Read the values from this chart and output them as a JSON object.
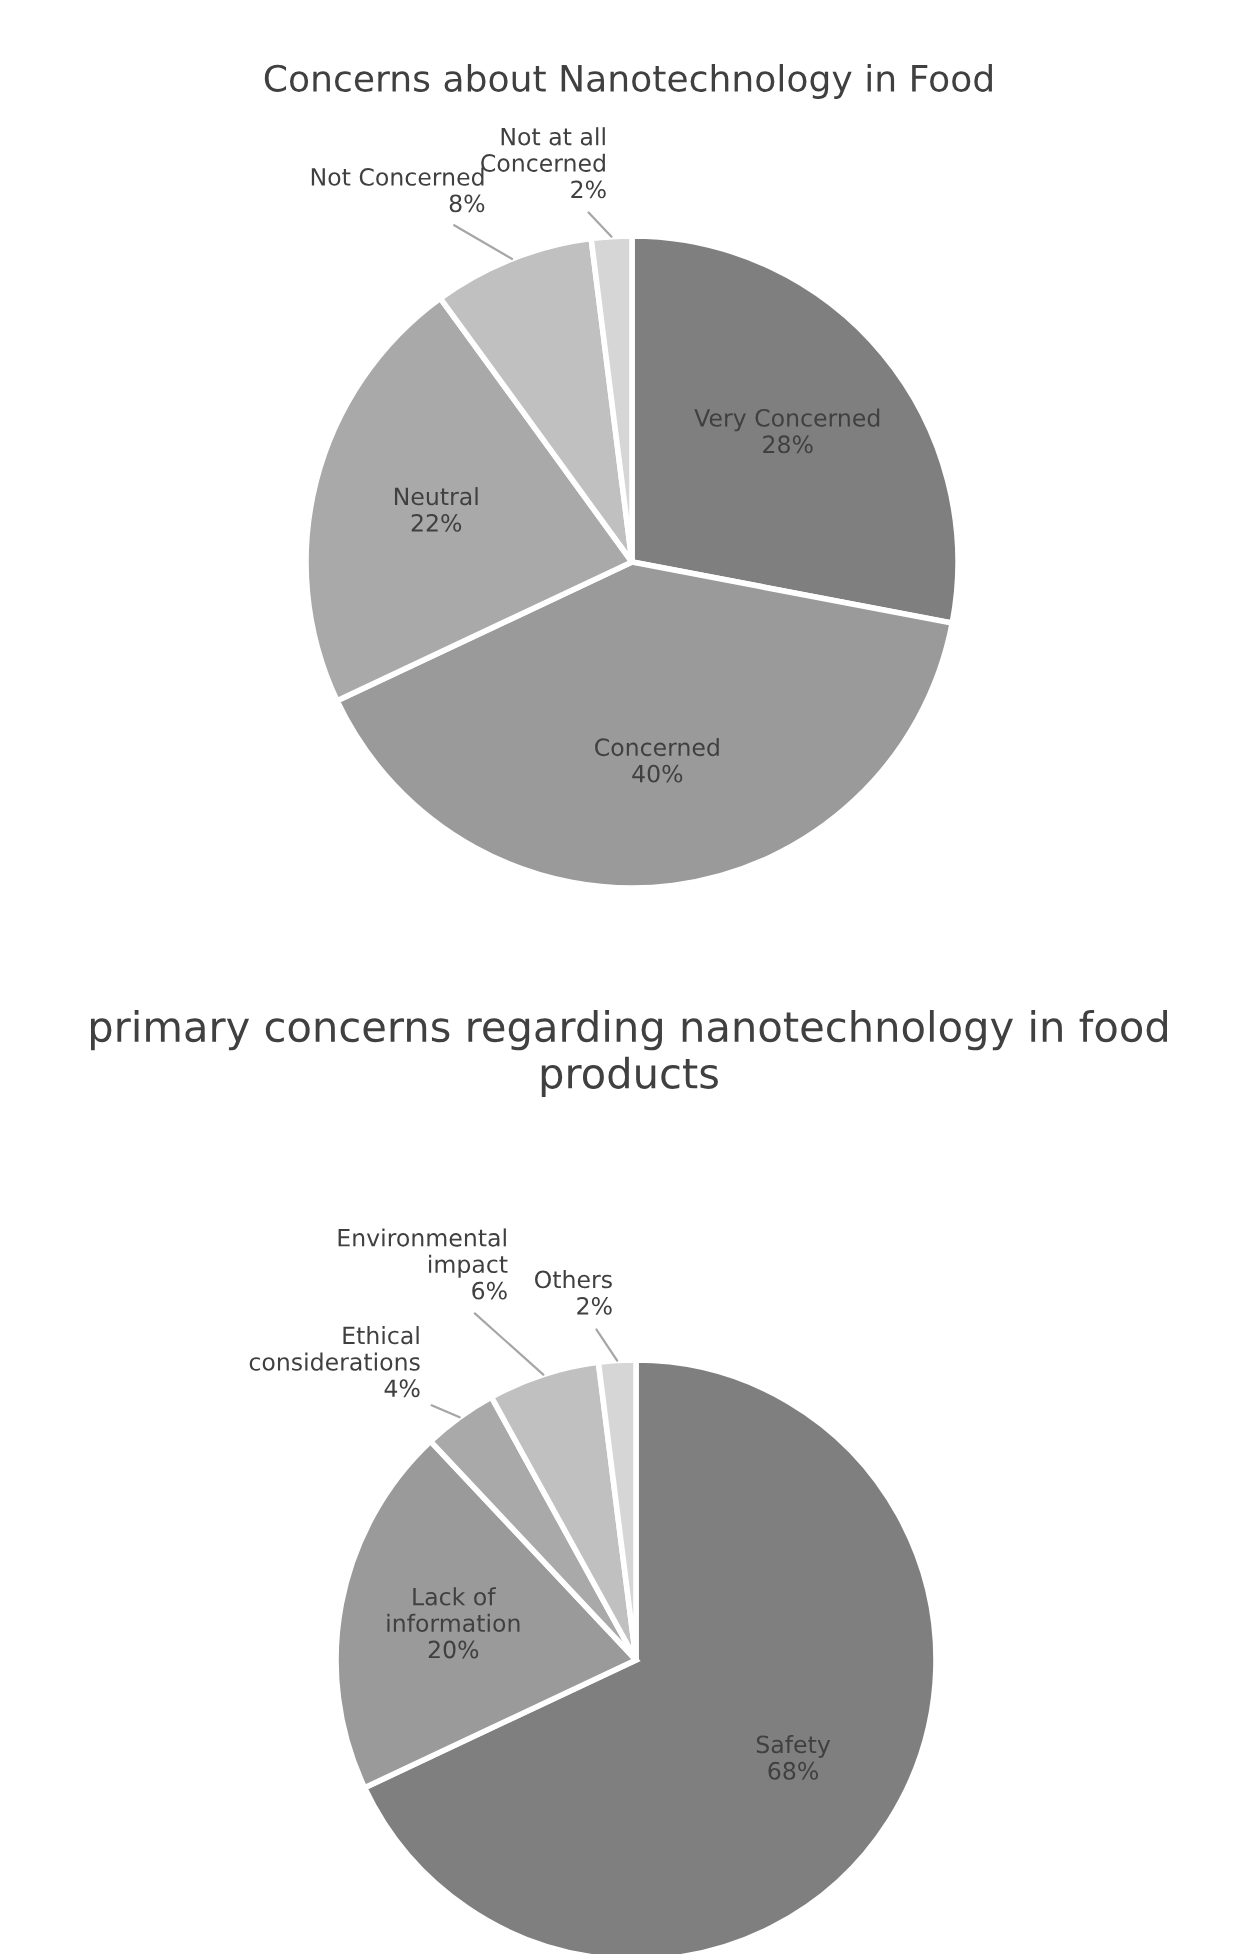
{
  "chart_data": [
    {
      "type": "pie",
      "title": "Concerns about Nanotechnology in Food",
      "categories": [
        "Very Concerned",
        "Concerned",
        "Neutral",
        "Not Concerned",
        "Not at all\nConcerned"
      ],
      "values": [
        28,
        40,
        22,
        8,
        2
      ],
      "value_labels": [
        "28%",
        "40%",
        "22%",
        "8%",
        "2%"
      ],
      "colors": [
        "#7f7f7f",
        "#9a9a9a",
        "#a9a9a9",
        "#c0c0c0",
        "#d6d6d6"
      ]
    },
    {
      "type": "pie",
      "title": "primary concerns regarding nanotechnology in food products",
      "categories": [
        "Safety",
        "Lack of\ninformation",
        "Ethical\nconsiderations",
        "Environmental\nimpact",
        "Others"
      ],
      "values": [
        68,
        20,
        4,
        6,
        2
      ],
      "value_labels": [
        "68%",
        "20%",
        "4%",
        "6%",
        "2%"
      ],
      "colors": [
        "#7f7f7f",
        "#9a9a9a",
        "#a9a9a9",
        "#c0c0c0",
        "#d6d6d6"
      ]
    }
  ]
}
